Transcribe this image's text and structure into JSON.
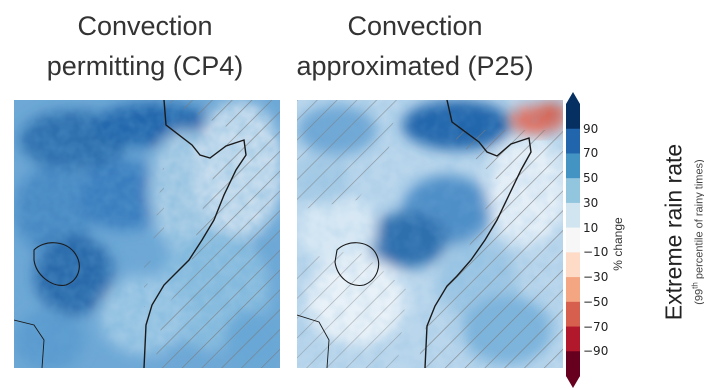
{
  "panels": [
    {
      "title_line1": "Convection",
      "title_line2": "permitting (CP4)"
    },
    {
      "title_line1": "Convection",
      "title_line2": "approximated (P25)"
    }
  ],
  "colorbar": {
    "ticks": [
      "90",
      "70",
      "50",
      "30",
      "10",
      "−10",
      "−30",
      "−50",
      "−70",
      "−90"
    ],
    "unit_label": "% change",
    "colors": [
      "#67001f",
      "#b2182b",
      "#d6604d",
      "#f4a582",
      "#fddbc7",
      "#f7f7f7",
      "#d1e5f0",
      "#92c5de",
      "#4393c3",
      "#2166ac",
      "#053061"
    ],
    "extends": "both"
  },
  "side_label": {
    "title": "Extreme rain rate",
    "subtitle_pre": "(99",
    "subtitle_sup": "th",
    "subtitle_post": " percentile of rainy times)"
  },
  "map": {
    "hatching": "diagonal lines indicate non-significant change",
    "coastline_color": "#1a1a1a"
  }
}
